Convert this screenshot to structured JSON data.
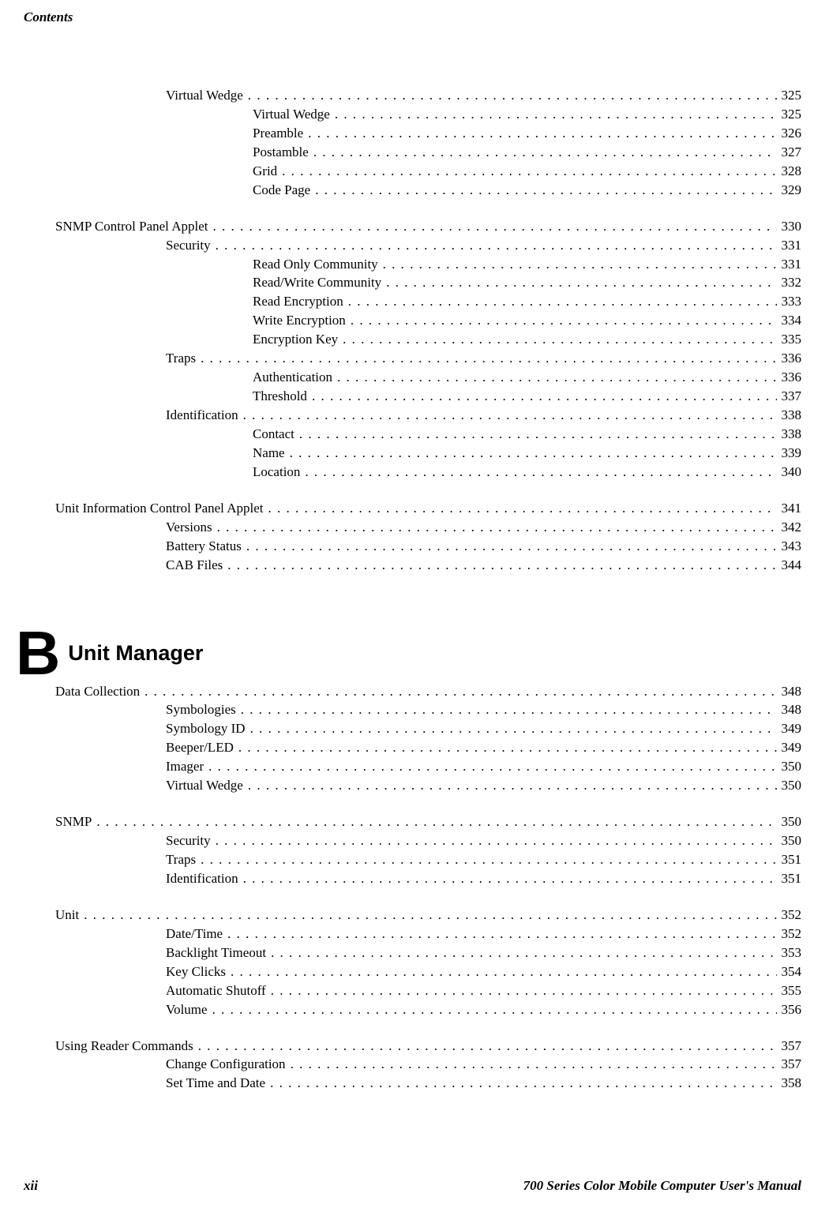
{
  "header_label": "Contents",
  "footer": {
    "page_number": "xii",
    "book_title": "700 Series Color Mobile Computer User's Manual"
  },
  "section_a_continued": {
    "items": [
      {
        "label": "Virtual Wedge",
        "page": "325",
        "indent": 1
      },
      {
        "label": "Virtual Wedge",
        "page": "325",
        "indent": 2
      },
      {
        "label": "Preamble",
        "page": "326",
        "indent": 2
      },
      {
        "label": "Postamble",
        "page": "327",
        "indent": 2
      },
      {
        "label": "Grid",
        "page": "328",
        "indent": 2
      },
      {
        "label": "Code Page",
        "page": "329",
        "indent": 2
      },
      {
        "label": "__BREAK__"
      },
      {
        "label": "SNMP Control Panel Applet",
        "page": "330",
        "indent": 0
      },
      {
        "label": "Security",
        "page": "331",
        "indent": 1
      },
      {
        "label": "Read Only Community",
        "page": "331",
        "indent": 2
      },
      {
        "label": "Read/Write Community",
        "page": "332",
        "indent": 2
      },
      {
        "label": "Read Encryption",
        "page": "333",
        "indent": 2
      },
      {
        "label": "Write Encryption",
        "page": "334",
        "indent": 2
      },
      {
        "label": "Encryption Key",
        "page": "335",
        "indent": 2
      },
      {
        "label": "Traps",
        "page": "336",
        "indent": 1
      },
      {
        "label": "Authentication",
        "page": "336",
        "indent": 2
      },
      {
        "label": "Threshold",
        "page": "337",
        "indent": 2
      },
      {
        "label": "Identification",
        "page": "338",
        "indent": 1
      },
      {
        "label": "Contact",
        "page": "338",
        "indent": 2
      },
      {
        "label": "Name",
        "page": "339",
        "indent": 2
      },
      {
        "label": "Location",
        "page": "340",
        "indent": 2
      },
      {
        "label": "__BREAK__"
      },
      {
        "label": "Unit Information Control Panel Applet",
        "page": "341",
        "indent": 0
      },
      {
        "label": "Versions",
        "page": "342",
        "indent": 1
      },
      {
        "label": "Battery Status",
        "page": "343",
        "indent": 1
      },
      {
        "label": "CAB Files",
        "page": "344",
        "indent": 1
      }
    ]
  },
  "section_b": {
    "letter": "B",
    "title": "Unit Manager",
    "items": [
      {
        "label": "Data Collection",
        "page": "348",
        "indent": 0
      },
      {
        "label": "Symbologies",
        "page": "348",
        "indent": 1
      },
      {
        "label": "Symbology ID",
        "page": "349",
        "indent": 1
      },
      {
        "label": "Beeper/LED",
        "page": "349",
        "indent": 1
      },
      {
        "label": "Imager",
        "page": "350",
        "indent": 1
      },
      {
        "label": "Virtual Wedge",
        "page": "350",
        "indent": 1
      },
      {
        "label": "__BREAK__"
      },
      {
        "label": "SNMP",
        "page": "350",
        "indent": 0
      },
      {
        "label": "Security",
        "page": "350",
        "indent": 1
      },
      {
        "label": "Traps",
        "page": "351",
        "indent": 1
      },
      {
        "label": "Identification",
        "page": "351",
        "indent": 1
      },
      {
        "label": "__BREAK__"
      },
      {
        "label": "Unit",
        "page": "352",
        "indent": 0
      },
      {
        "label": "Date/Time",
        "page": "352",
        "indent": 1
      },
      {
        "label": "Backlight Timeout",
        "page": "353",
        "indent": 1
      },
      {
        "label": "Key Clicks",
        "page": "354",
        "indent": 1
      },
      {
        "label": "Automatic Shutoff",
        "page": "355",
        "indent": 1
      },
      {
        "label": "Volume",
        "page": "356",
        "indent": 1
      },
      {
        "label": "__BREAK__"
      },
      {
        "label": "Using Reader Commands",
        "page": "357",
        "indent": 0
      },
      {
        "label": "Change Configuration",
        "page": "357",
        "indent": 1
      },
      {
        "label": "Set Time and Date",
        "page": "358",
        "indent": 1
      }
    ]
  }
}
